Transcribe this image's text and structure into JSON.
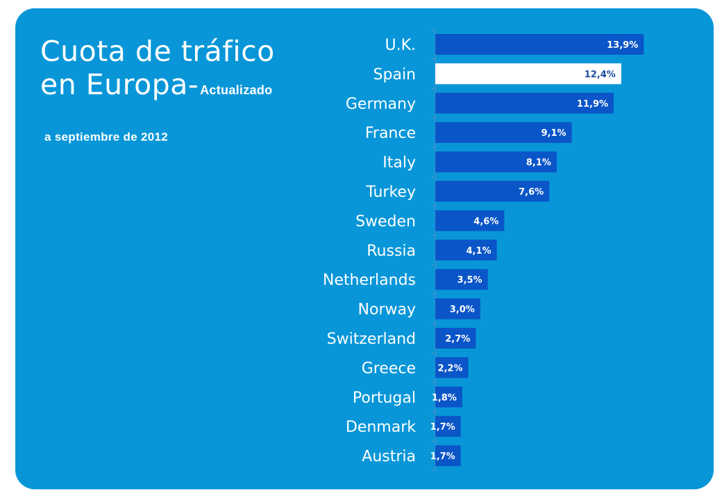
{
  "title": {
    "line1": "Cuota de tráfico",
    "line2": "en Europa-",
    "suffix": "Actualizado",
    "date": "a  septiembre de 2012"
  },
  "colors": {
    "panel_background": "#0896d8",
    "bar": "#0a55c8",
    "highlight_bar": "#ffffff",
    "label_text": "#ffffff",
    "highlight_text": "#1a4aa0"
  },
  "chart_data": {
    "type": "bar",
    "orientation": "horizontal",
    "title": "Cuota de tráfico en Europa-Actualizado a septiembre de 2012",
    "categories": [
      "U.K.",
      "Spain",
      "Germany",
      "France",
      "Italy",
      "Turkey",
      "Sweden",
      "Russia",
      "Netherlands",
      "Norway",
      "Switzerland",
      "Greece",
      "Portugal",
      "Denmark",
      "Austria"
    ],
    "values": [
      13.9,
      12.4,
      11.9,
      9.1,
      8.1,
      7.6,
      4.6,
      4.1,
      3.5,
      3.0,
      2.7,
      2.2,
      1.8,
      1.7,
      1.7
    ],
    "labels": [
      "13,9%",
      "12,4%",
      "11,9%",
      "9,1%",
      "8,1%",
      "7,6%",
      "4,6%",
      "4,1%",
      "3,5%",
      "3,0%",
      "2,7%",
      "2,2%",
      "1,8%",
      "1,7%",
      "1,7%"
    ],
    "highlight": "Spain",
    "unit": "%",
    "grid": false,
    "legend": "none"
  }
}
